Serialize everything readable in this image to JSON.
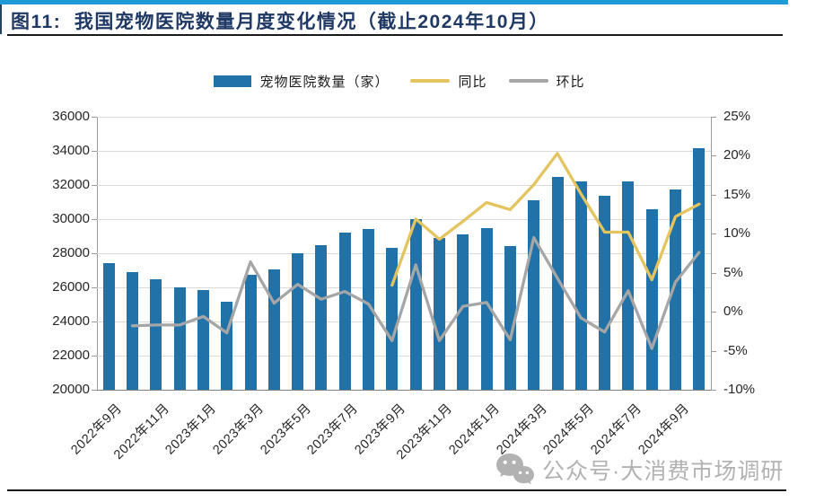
{
  "figure": {
    "title": "图11:  我国宠物医院数量月度变化情况（截止2024年10月）",
    "watermark": "公众号·大消费市场调研"
  },
  "legend": [
    {
      "label": "宠物医院数量（家）",
      "type": "bar",
      "color": "#2172A8"
    },
    {
      "label": "同比",
      "type": "line",
      "color": "#E4C45F"
    },
    {
      "label": "环比",
      "type": "line",
      "color": "#A6A6A6"
    }
  ],
  "axes": {
    "left_ticks": [
      "36000",
      "34000",
      "32000",
      "30000",
      "28000",
      "26000",
      "24000",
      "22000",
      "20000"
    ],
    "right_ticks": [
      "25%",
      "20%",
      "15%",
      "10%",
      "5%",
      "0%",
      "-5%",
      "-10%"
    ],
    "x_tick_labels": [
      "2022年9月",
      "2022年11月",
      "2023年1月",
      "2023年3月",
      "2023年5月",
      "2023年7月",
      "2023年9月",
      "2023年11月",
      "2024年1月",
      "2024年3月",
      "2024年5月",
      "2024年7月",
      "2024年9月"
    ]
  },
  "chart_data": {
    "type": "bar+line",
    "title": "我国宠物医院数量月度变化情况（截止2024年10月）",
    "categories": [
      "2022年9月",
      "2022年10月",
      "2022年11月",
      "2022年12月",
      "2023年1月",
      "2023年2月",
      "2023年3月",
      "2023年4月",
      "2023年5月",
      "2023年6月",
      "2023年7月",
      "2023年8月",
      "2023年9月",
      "2023年10月",
      "2023年11月",
      "2023年12月",
      "2024年1月",
      "2024年2月",
      "2024年3月",
      "2024年4月",
      "2024年5月",
      "2024年6月",
      "2024年7月",
      "2024年8月",
      "2024年9月",
      "2024年10月"
    ],
    "series": [
      {
        "name": "宠物医院数量（家）",
        "type": "bar",
        "axis": "left",
        "color": "#2172A8",
        "values": [
          27400,
          26900,
          26450,
          26000,
          25850,
          25150,
          26750,
          27050,
          28000,
          28450,
          29200,
          29400,
          28300,
          30000,
          28900,
          29100,
          29450,
          28400,
          31100,
          32450,
          32200,
          31350,
          32200,
          30600,
          31750,
          34150
        ]
      },
      {
        "name": "同比",
        "type": "line",
        "axis": "right",
        "color": "#E4C45F",
        "unit": "%",
        "values": [
          null,
          null,
          null,
          null,
          null,
          null,
          null,
          null,
          null,
          null,
          null,
          null,
          3.4,
          11.9,
          9.3,
          11.6,
          14.0,
          13.1,
          16.3,
          20.3,
          15.1,
          10.2,
          10.2,
          4.1,
          12.2,
          13.8
        ]
      },
      {
        "name": "环比",
        "type": "line",
        "axis": "right",
        "color": "#A6A6A6",
        "unit": "%",
        "values": [
          null,
          -1.8,
          -1.7,
          -1.7,
          -0.6,
          -2.7,
          6.4,
          1.1,
          3.5,
          1.6,
          2.6,
          1.0,
          -3.7,
          6.0,
          -3.7,
          0.7,
          1.2,
          -3.6,
          9.5,
          4.3,
          -0.8,
          -2.6,
          2.7,
          -4.7,
          3.8,
          7.6
        ]
      }
    ],
    "left_axis": {
      "min": 20000,
      "max": 36000,
      "step": 2000
    },
    "right_axis": {
      "min": -10,
      "max": 25,
      "step": 5,
      "format": "percent"
    },
    "x_tick_every": 2,
    "grid": true,
    "legend_position": "top"
  },
  "colors": {
    "top_bar": "#1E9BD7",
    "title": "#1F3864",
    "gridline": "#DADADA",
    "axis": "#9A9A9A",
    "tick_text": "#262626",
    "watermark": "#B2B2B2"
  }
}
